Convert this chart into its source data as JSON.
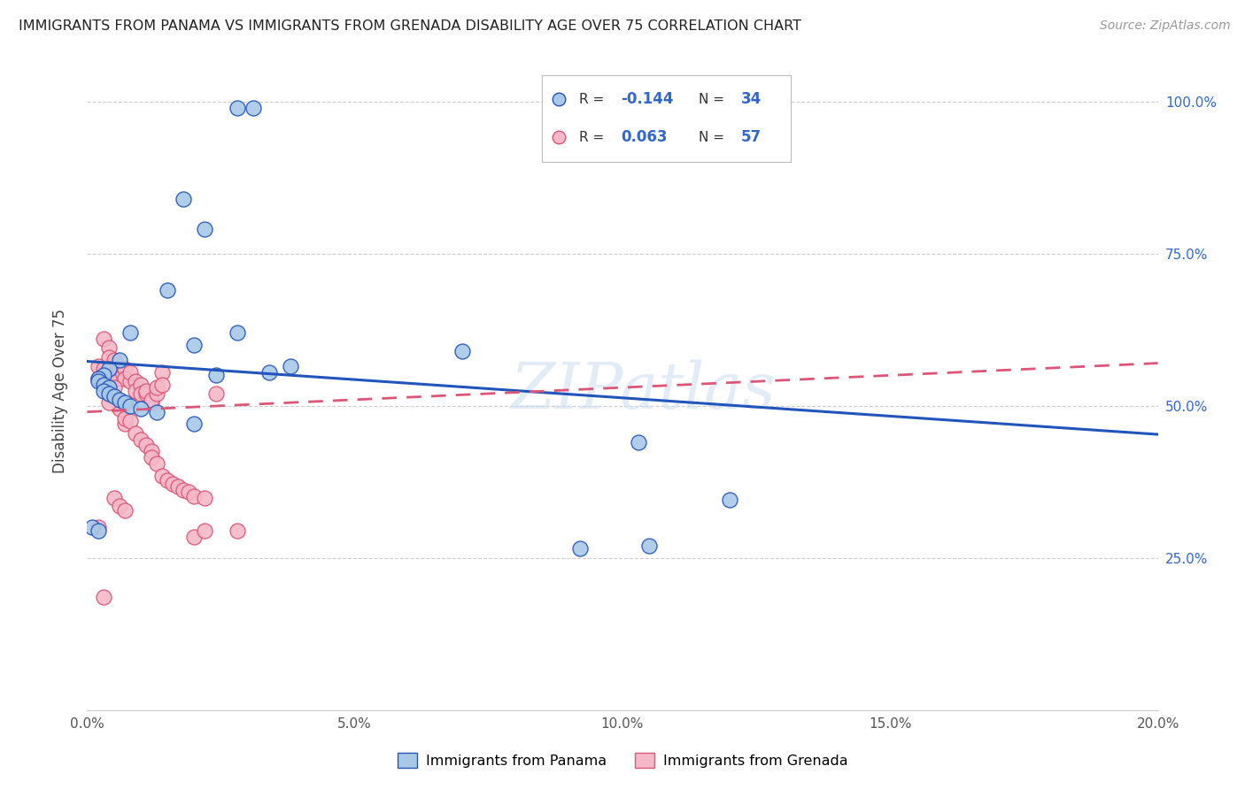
{
  "title": "IMMIGRANTS FROM PANAMA VS IMMIGRANTS FROM GRENADA DISABILITY AGE OVER 75 CORRELATION CHART",
  "source": "Source: ZipAtlas.com",
  "ylabel": "Disability Age Over 75",
  "legend_panama": "Immigrants from Panama",
  "legend_grenada": "Immigrants from Grenada",
  "r_panama": "-0.144",
  "n_panama": "34",
  "r_grenada": "0.063",
  "n_grenada": "57",
  "color_panama": "#a8c8e8",
  "color_grenada": "#f4b8c8",
  "color_line_panama": "#2255bb",
  "color_line_grenada": "#dd5577",
  "color_text_blue": "#3366cc",
  "panama_x": [
    0.028,
    0.031,
    0.018,
    0.022,
    0.015,
    0.008,
    0.006,
    0.004,
    0.003,
    0.002,
    0.002,
    0.003,
    0.004,
    0.003,
    0.004,
    0.005,
    0.006,
    0.007,
    0.008,
    0.01,
    0.013,
    0.02,
    0.024,
    0.028,
    0.034,
    0.038,
    0.07,
    0.092,
    0.105,
    0.001,
    0.002,
    0.12,
    0.103,
    0.02
  ],
  "panama_y": [
    0.99,
    0.99,
    0.84,
    0.79,
    0.69,
    0.62,
    0.575,
    0.56,
    0.55,
    0.545,
    0.54,
    0.535,
    0.53,
    0.525,
    0.52,
    0.515,
    0.51,
    0.505,
    0.5,
    0.495,
    0.49,
    0.6,
    0.55,
    0.62,
    0.555,
    0.565,
    0.59,
    0.265,
    0.27,
    0.3,
    0.295,
    0.345,
    0.44,
    0.47
  ],
  "grenada_x": [
    0.003,
    0.004,
    0.004,
    0.005,
    0.005,
    0.005,
    0.006,
    0.006,
    0.007,
    0.007,
    0.008,
    0.008,
    0.009,
    0.009,
    0.01,
    0.01,
    0.011,
    0.011,
    0.012,
    0.012,
    0.013,
    0.013,
    0.014,
    0.014,
    0.002,
    0.002,
    0.003,
    0.004,
    0.005,
    0.006,
    0.007,
    0.007,
    0.008,
    0.009,
    0.01,
    0.011,
    0.012,
    0.012,
    0.013,
    0.014,
    0.015,
    0.016,
    0.017,
    0.018,
    0.019,
    0.02,
    0.022,
    0.02,
    0.022,
    0.024,
    0.028,
    0.002,
    0.003,
    0.004,
    0.005,
    0.006,
    0.007
  ],
  "grenada_y": [
    0.61,
    0.595,
    0.58,
    0.57,
    0.56,
    0.575,
    0.56,
    0.545,
    0.56,
    0.545,
    0.54,
    0.555,
    0.54,
    0.525,
    0.535,
    0.52,
    0.52,
    0.525,
    0.505,
    0.51,
    0.52,
    0.53,
    0.555,
    0.535,
    0.565,
    0.545,
    0.56,
    0.545,
    0.53,
    0.495,
    0.47,
    0.48,
    0.475,
    0.455,
    0.445,
    0.435,
    0.425,
    0.415,
    0.405,
    0.385,
    0.378,
    0.372,
    0.368,
    0.362,
    0.358,
    0.352,
    0.348,
    0.285,
    0.295,
    0.52,
    0.295,
    0.3,
    0.185,
    0.505,
    0.348,
    0.335,
    0.328
  ],
  "xlim": [
    0.0,
    0.2
  ],
  "ylim": [
    0.0,
    1.05
  ],
  "xticks": [
    0.0,
    0.05,
    0.1,
    0.15,
    0.2
  ],
  "xticklabels": [
    "0.0%",
    "5.0%",
    "10.0%",
    "15.0%",
    "20.0%"
  ],
  "yticks": [
    0.0,
    0.25,
    0.5,
    0.75,
    1.0
  ],
  "yticklabels_right": [
    "",
    "25.0%",
    "50.0%",
    "75.0%",
    "100.0%"
  ],
  "background_color": "#ffffff",
  "grid_color": "#cccccc",
  "watermark": "ZIPatlas",
  "watermark_color": "#d0e0f0"
}
